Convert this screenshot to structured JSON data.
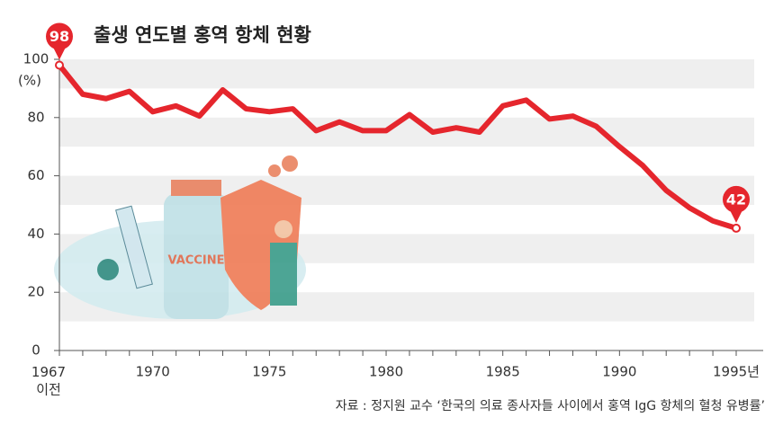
{
  "chart_data": {
    "type": "line",
    "title": "출생 연도별 홍역 항체 현황",
    "ylabel": "(%)",
    "source": "자료 : 정지원 교수 ‘한국의 의료 종사자들 사이에서 홍역 IgG 항체의 혈청 유병률’",
    "categories": [
      "1967\n이전",
      null,
      null,
      null,
      "1970",
      null,
      null,
      null,
      null,
      "1975",
      null,
      null,
      null,
      null,
      "1980",
      null,
      null,
      null,
      null,
      "1985",
      null,
      null,
      null,
      null,
      "1990",
      null,
      null,
      null,
      null,
      "1995년"
    ],
    "series": [
      {
        "name": "홍역 항체",
        "color": "#e5262d",
        "values": [
          98,
          88,
          86.5,
          89,
          82,
          84,
          80.5,
          89.5,
          83,
          82,
          83,
          75.5,
          78.5,
          75.5,
          75.5,
          81,
          75,
          76.5,
          75,
          84,
          86,
          79.5,
          80.5,
          77,
          70,
          63.5,
          55,
          49,
          44.5,
          42
        ]
      }
    ],
    "ylim": [
      0,
      100
    ],
    "yticks": [
      0,
      20,
      40,
      60,
      80,
      100
    ],
    "bands": true,
    "point_labels": "first-last"
  }
}
